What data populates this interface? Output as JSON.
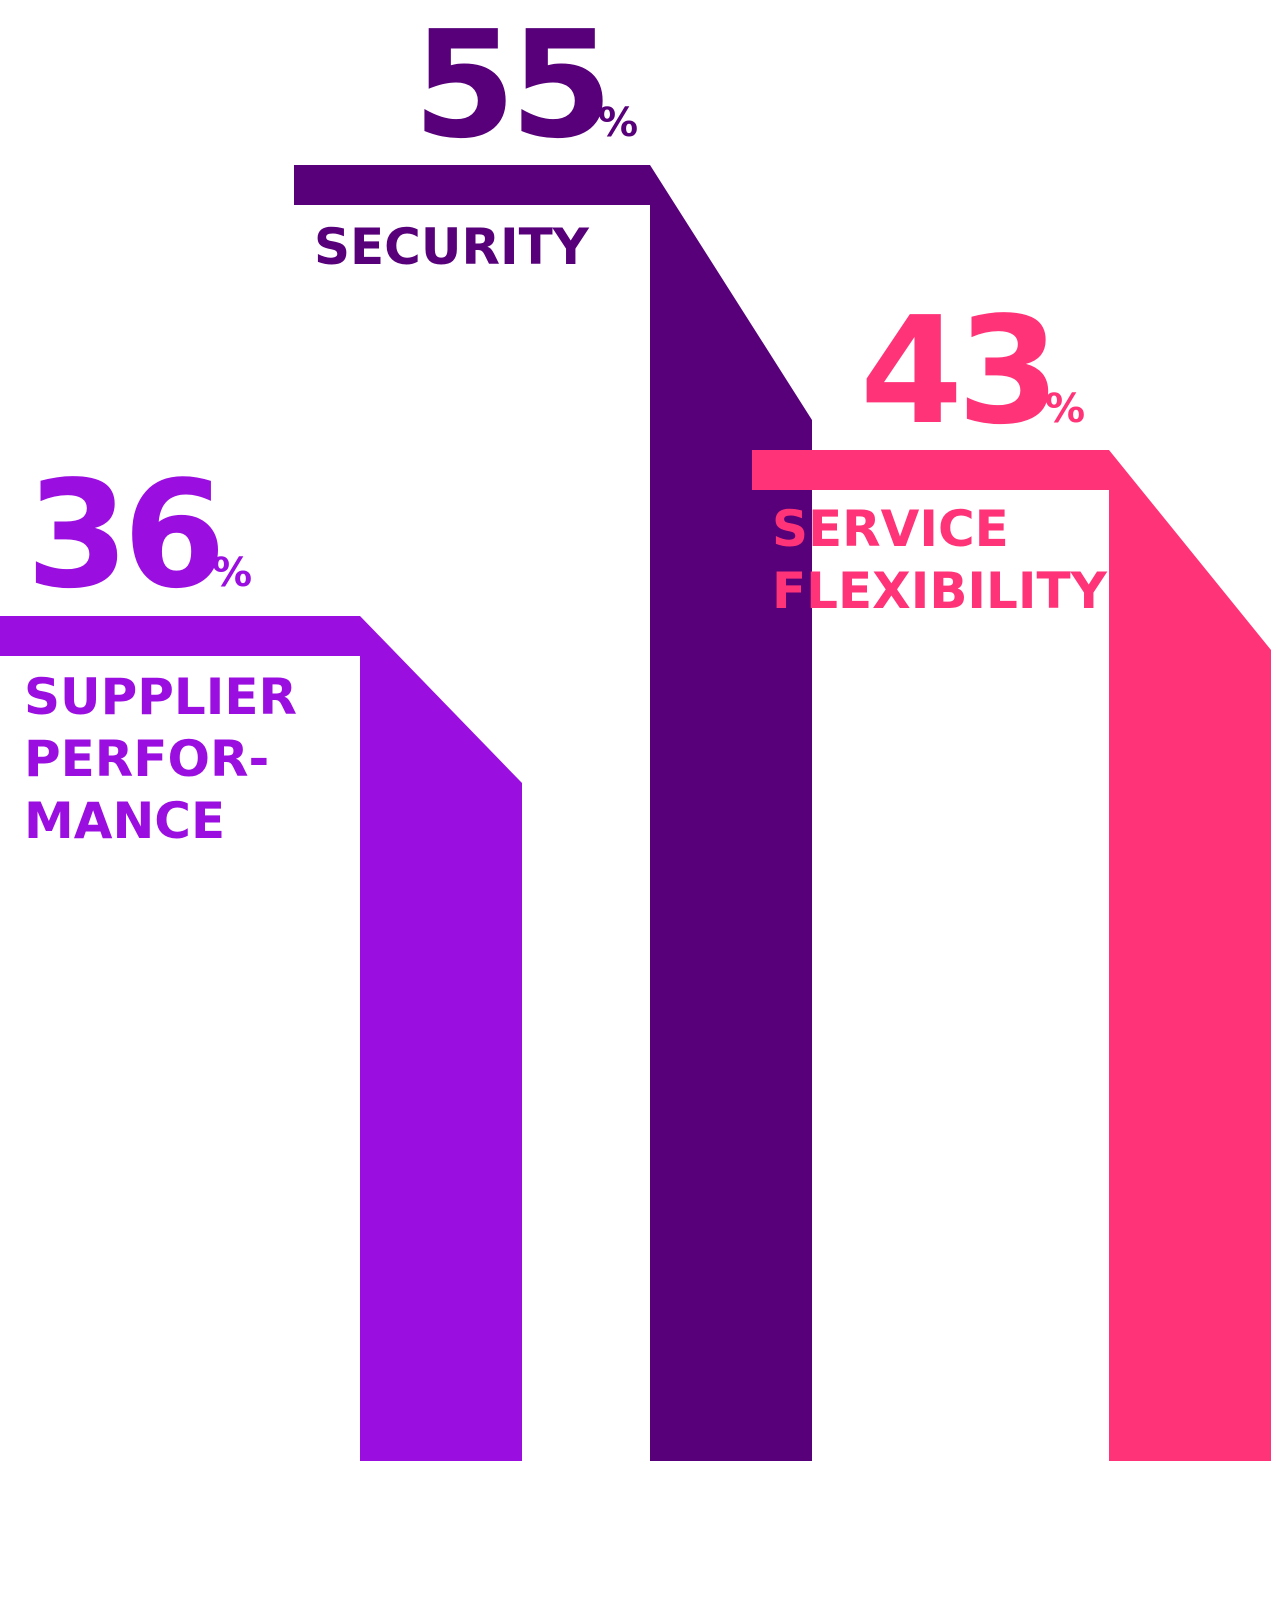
{
  "chart_data": {
    "type": "bar",
    "categories": [
      "SUPPLIER PERFOR- MANCE",
      "SECURITY",
      "SERVICE FLEXIBILITY"
    ],
    "values": [
      36,
      55,
      43
    ],
    "unit": "%",
    "bars": [
      {
        "value": "36",
        "unit": "%",
        "label_lines": [
          "SUPPLIER",
          "PERFOR-",
          "MANCE"
        ],
        "color": "#9b0ee0"
      },
      {
        "value": "55",
        "unit": "%",
        "label_lines": [
          "SECURITY"
        ],
        "color": "#57007a"
      },
      {
        "value": "43",
        "unit": "%",
        "label_lines": [
          "SERVICE",
          "FLEXIBILITY"
        ],
        "color": "#ff3378"
      }
    ]
  }
}
